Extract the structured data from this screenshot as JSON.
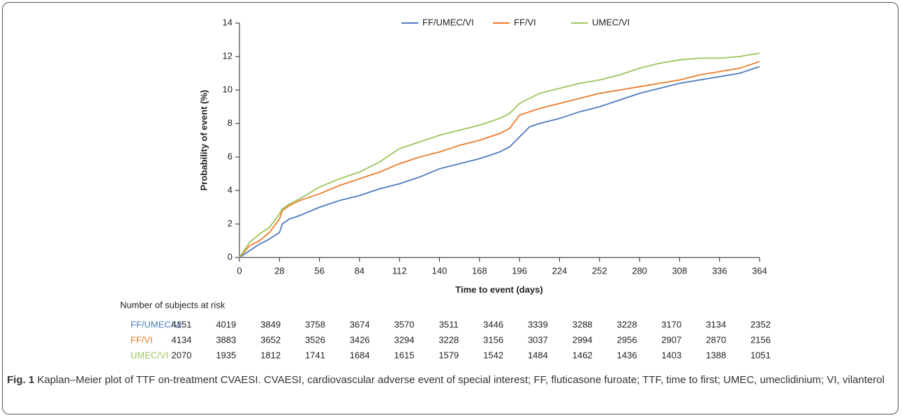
{
  "chart_data": {
    "type": "line",
    "xlabel": "Time to event (days)",
    "ylabel": "Probability of event (%)",
    "x": [
      0,
      7,
      14,
      21,
      28,
      30,
      35,
      42,
      56,
      70,
      84,
      98,
      112,
      126,
      140,
      154,
      168,
      182,
      189,
      196,
      203,
      210,
      224,
      238,
      252,
      266,
      280,
      294,
      308,
      322,
      336,
      350,
      364
    ],
    "series": [
      {
        "name": "FF/UMEC/VI",
        "color": "#4f7ac0",
        "values": [
          0,
          0.4,
          0.8,
          1.1,
          1.5,
          2.0,
          2.3,
          2.5,
          3.0,
          3.4,
          3.7,
          4.1,
          4.4,
          4.8,
          5.3,
          5.6,
          5.9,
          6.3,
          6.6,
          7.2,
          7.8,
          8.0,
          8.3,
          8.7,
          9.0,
          9.4,
          9.8,
          10.1,
          10.4,
          10.6,
          10.8,
          11.0,
          11.4
        ]
      },
      {
        "name": "FF/VI",
        "color": "#ec7a2a",
        "values": [
          0,
          0.7,
          1.0,
          1.5,
          2.3,
          2.8,
          3.1,
          3.4,
          3.8,
          4.3,
          4.7,
          5.1,
          5.6,
          6.0,
          6.3,
          6.7,
          7.0,
          7.4,
          7.7,
          8.5,
          8.7,
          8.9,
          9.2,
          9.5,
          9.8,
          10.0,
          10.2,
          10.4,
          10.6,
          10.9,
          11.1,
          11.3,
          11.7
        ]
      },
      {
        "name": "UMEC/VI",
        "color": "#9bc45a",
        "values": [
          0,
          0.9,
          1.4,
          1.8,
          2.6,
          2.9,
          3.2,
          3.5,
          4.2,
          4.7,
          5.1,
          5.7,
          6.5,
          6.9,
          7.3,
          7.6,
          7.9,
          8.3,
          8.6,
          9.2,
          9.5,
          9.8,
          10.1,
          10.4,
          10.6,
          10.9,
          11.3,
          11.6,
          11.8,
          11.9,
          11.9,
          12.0,
          12.2
        ]
      }
    ],
    "xlim": [
      0,
      364
    ],
    "xticks": [
      0,
      28,
      56,
      84,
      112,
      140,
      168,
      196,
      224,
      252,
      280,
      308,
      336,
      364
    ],
    "ylim": [
      0,
      14
    ],
    "yticks": [
      0,
      2,
      4,
      6,
      8,
      10,
      12,
      14
    ],
    "legend": "top"
  },
  "risk_table": {
    "title": "Number of subjects at risk",
    "rows": [
      {
        "name": "FF/UMEC/VI",
        "values": [
          4151,
          4019,
          3849,
          3758,
          3674,
          3570,
          3511,
          3446,
          3339,
          3288,
          3228,
          3170,
          3134,
          2352
        ]
      },
      {
        "name": "FF/VI",
        "values": [
          4134,
          3883,
          3652,
          3526,
          3426,
          3294,
          3228,
          3156,
          3037,
          2994,
          2956,
          2907,
          2870,
          2156
        ]
      },
      {
        "name": "UMEC/VI",
        "values": [
          2070,
          1935,
          1812,
          1741,
          1684,
          1615,
          1579,
          1542,
          1484,
          1462,
          1436,
          1403,
          1388,
          1051
        ]
      }
    ]
  },
  "caption": {
    "label": "Fig. 1",
    "text": "Kaplan–Meier plot of TTF on-treatment CVAESI. CVAESI, cardiovascular adverse event of special interest; FF, fluticasone furoate; TTF, time to first; UMEC, umeclidinium; VI, vilanterol"
  }
}
